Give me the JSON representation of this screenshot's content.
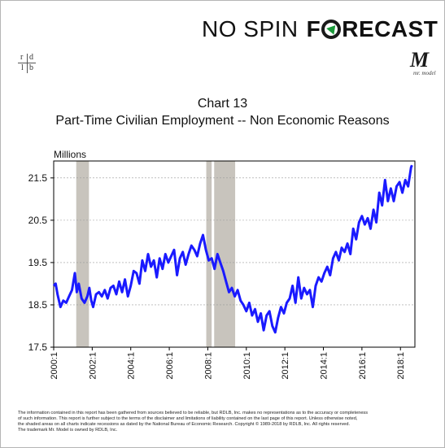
{
  "header": {
    "brand_left": "NO SPIN",
    "brand_right_prefix": "F",
    "brand_right_suffix": "RECAST",
    "logo_left_letters": [
      "r",
      "d",
      "l",
      "b"
    ],
    "logo_right_letter": "M",
    "logo_right_caption": "mr. model"
  },
  "chart_data": {
    "type": "line",
    "title": "Chart 13",
    "subtitle": "Part-Time Civilian Employment -- Non Economic Reasons",
    "ylabel": "Millions",
    "xlabel": "",
    "ylim": [
      17.5,
      21.9
    ],
    "yticks": [
      17.5,
      18.5,
      19.5,
      20.5,
      21.5
    ],
    "ytick_labels": [
      "17.5",
      "18.5",
      "19.5",
      "20.5",
      "21.5"
    ],
    "xlim": [
      2000.0,
      2018.75
    ],
    "xticks": [
      2000,
      2002,
      2004,
      2006,
      2008,
      2010,
      2012,
      2014,
      2016,
      2018
    ],
    "xtick_labels": [
      "2000:1",
      "2002:1",
      "2004:1",
      "2006:1",
      "2008:1",
      "2010:1",
      "2012:1",
      "2014:1",
      "2016:1",
      "2018:1"
    ],
    "grid": "horizontal dashed",
    "line_color": "#1a1aff",
    "recession_color": "#c8c4bd",
    "recessions": [
      [
        2001.17,
        2001.83
      ],
      [
        2007.92,
        2008.2
      ],
      [
        2008.33,
        2009.42
      ]
    ],
    "series": [
      {
        "x": [
          2000.0,
          2000.1,
          2000.2,
          2000.35,
          2000.5,
          2000.65,
          2000.8,
          2000.95,
          2001.1,
          2001.2,
          2001.3,
          2001.45,
          2001.6,
          2001.75,
          2001.85,
          2001.95,
          2002.05,
          2002.2,
          2002.35,
          2002.5,
          2002.65,
          2002.8,
          2002.95,
          2003.1,
          2003.25,
          2003.4,
          2003.55,
          2003.7,
          2003.85,
          2004.0,
          2004.15,
          2004.3,
          2004.45,
          2004.6,
          2004.75,
          2004.9,
          2005.05,
          2005.2,
          2005.35,
          2005.5,
          2005.65,
          2005.8,
          2005.95,
          2006.1,
          2006.25,
          2006.4,
          2006.55,
          2006.7,
          2006.85,
          2007.0,
          2007.15,
          2007.3,
          2007.45,
          2007.6,
          2007.75,
          2007.9,
          2008.05,
          2008.2,
          2008.35,
          2008.5,
          2008.65,
          2008.8,
          2008.95,
          2009.1,
          2009.25,
          2009.4,
          2009.55,
          2009.7,
          2009.85,
          2010.0,
          2010.15,
          2010.3,
          2010.45,
          2010.6,
          2010.75,
          2010.9,
          2011.05,
          2011.2,
          2011.35,
          2011.5,
          2011.65,
          2011.8,
          2011.95,
          2012.1,
          2012.25,
          2012.4,
          2012.55,
          2012.7,
          2012.85,
          2013.0,
          2013.15,
          2013.3,
          2013.45,
          2013.6,
          2013.75,
          2013.9,
          2014.05,
          2014.2,
          2014.35,
          2014.5,
          2014.65,
          2014.8,
          2014.95,
          2015.1,
          2015.25,
          2015.4,
          2015.55,
          2015.7,
          2015.85,
          2016.0,
          2016.15,
          2016.3,
          2016.45,
          2016.6,
          2016.75,
          2016.9,
          2017.05,
          2017.2,
          2017.35,
          2017.5,
          2017.65,
          2017.8,
          2017.95,
          2018.1,
          2018.25,
          2018.4,
          2018.55,
          2018.6
        ],
        "y": [
          18.95,
          19.0,
          18.75,
          18.45,
          18.6,
          18.55,
          18.7,
          18.85,
          19.25,
          18.8,
          19.0,
          18.65,
          18.55,
          18.7,
          18.9,
          18.6,
          18.45,
          18.75,
          18.8,
          18.7,
          18.85,
          18.65,
          18.9,
          18.95,
          18.75,
          19.05,
          18.8,
          19.1,
          18.7,
          18.95,
          19.3,
          19.25,
          19.0,
          19.55,
          19.3,
          19.7,
          19.4,
          19.55,
          19.15,
          19.6,
          19.35,
          19.7,
          19.5,
          19.65,
          19.8,
          19.2,
          19.6,
          19.75,
          19.45,
          19.7,
          19.9,
          19.8,
          19.65,
          19.95,
          20.15,
          19.8,
          19.55,
          19.6,
          19.35,
          19.7,
          19.5,
          19.3,
          19.05,
          18.8,
          18.9,
          18.7,
          18.85,
          18.6,
          18.5,
          18.35,
          18.55,
          18.25,
          18.4,
          18.1,
          18.3,
          17.9,
          18.25,
          18.35,
          18.0,
          17.85,
          18.2,
          18.45,
          18.3,
          18.55,
          18.65,
          18.95,
          18.55,
          19.15,
          18.65,
          18.9,
          18.75,
          18.85,
          18.45,
          18.95,
          19.15,
          19.05,
          19.25,
          19.4,
          19.2,
          19.6,
          19.75,
          19.55,
          19.85,
          19.75,
          19.95,
          19.7,
          20.3,
          20.05,
          20.45,
          20.6,
          20.4,
          20.55,
          20.3,
          20.75,
          20.45,
          21.15,
          20.85,
          21.45,
          20.95,
          21.25,
          20.95,
          21.3,
          21.4,
          21.15,
          21.45,
          21.3,
          21.75,
          21.8
        ]
      }
    ]
  },
  "footer": {
    "line1": "The information contained in this report has been gathered from sources believed to be reliable, but RDLB, Inc. makes no representations as to the accuracy or completeness",
    "line2": "of such information. This report is further subject to the terms of the disclaimer and limitations of liability contained on the last page of this report. Unless otherwise noted,",
    "line3": "the shaded areas on all charts indicate recessions as dated by the National Bureau of Economic Research. Copyright © 1989-2018 by RDLB, Inc. All rights reserved.",
    "line4": "The trademark Mr. Model is owned by RDLB, Inc."
  }
}
